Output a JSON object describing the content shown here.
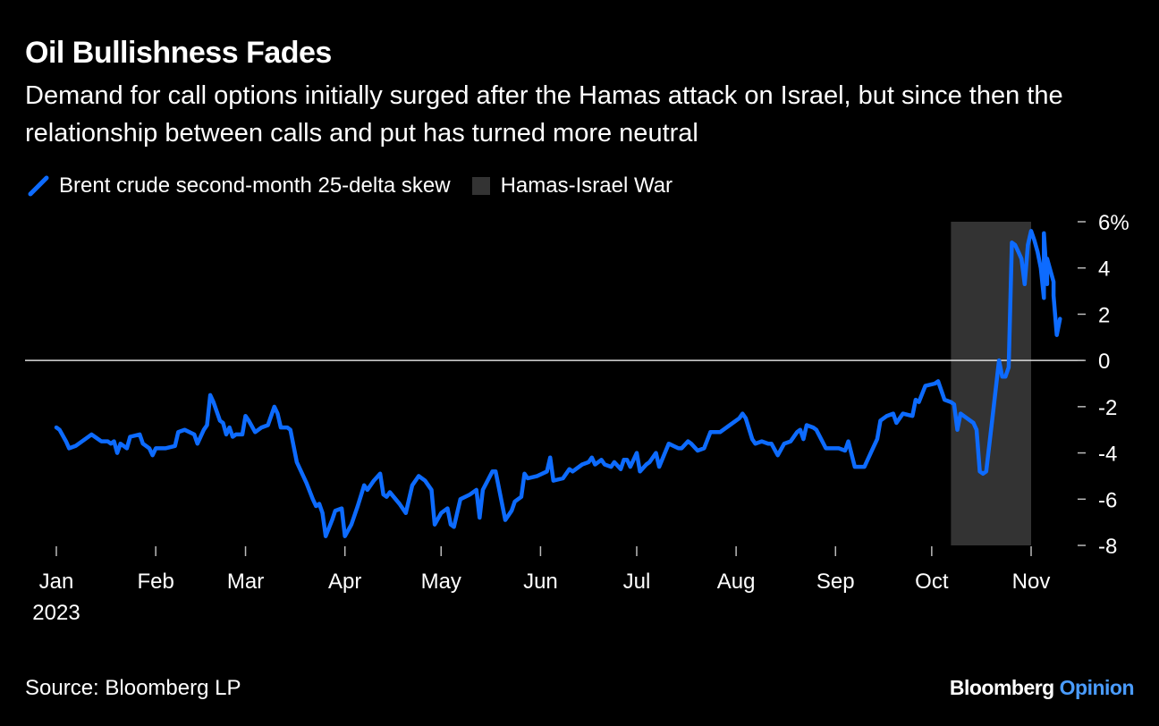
{
  "title": "Oil Bullishness Fades",
  "subtitle": "Demand for call options initially surged after the Hamas attack on Israel, but since then the relationship between calls and put has turned more neutral",
  "source": "Source: Bloomberg LP",
  "brand": {
    "name": "Bloomberg",
    "section": "Opinion"
  },
  "colors": {
    "line": "#0d6bff",
    "shade": "#333333",
    "zero_line": "#dddddd",
    "background": "#000000"
  },
  "legend": [
    {
      "label": "Brent crude second-month 25-delta skew",
      "icon": "line-swatch-icon"
    },
    {
      "label": "Hamas-Israel War",
      "icon": "box-swatch-icon"
    }
  ],
  "chart_data": {
    "type": "line",
    "title": "Oil Bullishness Fades",
    "ylim": [
      -8,
      6
    ],
    "yticks": [
      -8,
      -6,
      -4,
      -2,
      0,
      2,
      4,
      6
    ],
    "ytick_labels": [
      "-8",
      "-6",
      "-4",
      "-2",
      "0",
      "2",
      "4",
      "6%"
    ],
    "x_axis_start": "2023-01-01",
    "x_axis_end": "2023-11-01",
    "xtick_labels": [
      "Jan",
      "Feb",
      "Mar",
      "Apr",
      "May",
      "Jun",
      "Jul",
      "Aug",
      "Sep",
      "Oct",
      "Nov"
    ],
    "xtick_dates": [
      "2023-01-01",
      "2023-02-01",
      "2023-03-01",
      "2023-04-01",
      "2023-05-01",
      "2023-06-01",
      "2023-07-01",
      "2023-08-01",
      "2023-09-01",
      "2023-10-01",
      "2023-11-01"
    ],
    "year_label": "2023",
    "shaded_region": {
      "label": "Hamas-Israel War",
      "start": "2023-10-07",
      "end": "2023-11-01"
    },
    "series": [
      {
        "name": "Brent crude second-month 25-delta skew",
        "points": [
          [
            "2023-01-01",
            -2.9
          ],
          [
            "2023-01-02",
            -3.0
          ],
          [
            "2023-01-04",
            -3.5
          ],
          [
            "2023-01-05",
            -3.8
          ],
          [
            "2023-01-07",
            -3.7
          ],
          [
            "2023-01-10",
            -3.4
          ],
          [
            "2023-01-12",
            -3.2
          ],
          [
            "2023-01-13",
            -3.3
          ],
          [
            "2023-01-15",
            -3.5
          ],
          [
            "2023-01-17",
            -3.5
          ],
          [
            "2023-01-18",
            -3.6
          ],
          [
            "2023-01-19",
            -3.5
          ],
          [
            "2023-01-20",
            -4.0
          ],
          [
            "2023-01-21",
            -3.6
          ],
          [
            "2023-01-23",
            -3.8
          ],
          [
            "2023-01-24",
            -3.3
          ],
          [
            "2023-01-27",
            -3.2
          ],
          [
            "2023-01-28",
            -3.6
          ],
          [
            "2023-01-30",
            -3.8
          ],
          [
            "2023-01-31",
            -4.1
          ],
          [
            "2023-02-01",
            -3.8
          ],
          [
            "2023-02-04",
            -3.8
          ],
          [
            "2023-02-07",
            -3.7
          ],
          [
            "2023-02-08",
            -3.1
          ],
          [
            "2023-02-10",
            -3.0
          ],
          [
            "2023-02-13",
            -3.2
          ],
          [
            "2023-02-14",
            -3.6
          ],
          [
            "2023-02-16",
            -3.0
          ],
          [
            "2023-02-17",
            -2.8
          ],
          [
            "2023-02-18",
            -1.5
          ],
          [
            "2023-02-19",
            -1.8
          ],
          [
            "2023-02-21",
            -2.6
          ],
          [
            "2023-02-22",
            -2.7
          ],
          [
            "2023-02-23",
            -3.2
          ],
          [
            "2023-02-24",
            -2.9
          ],
          [
            "2023-02-25",
            -3.3
          ],
          [
            "2023-02-26",
            -3.2
          ],
          [
            "2023-02-28",
            -3.2
          ],
          [
            "2023-03-01",
            -2.4
          ],
          [
            "2023-03-02",
            -2.6
          ],
          [
            "2023-03-04",
            -3.1
          ],
          [
            "2023-03-06",
            -2.9
          ],
          [
            "2023-03-08",
            -2.8
          ],
          [
            "2023-03-10",
            -2.0
          ],
          [
            "2023-03-11",
            -2.3
          ],
          [
            "2023-03-12",
            -2.9
          ],
          [
            "2023-03-14",
            -2.9
          ],
          [
            "2023-03-15",
            -3.0
          ],
          [
            "2023-03-17",
            -4.4
          ],
          [
            "2023-03-19",
            -5.0
          ],
          [
            "2023-03-20",
            -5.3
          ],
          [
            "2023-03-22",
            -6.0
          ],
          [
            "2023-03-23",
            -6.3
          ],
          [
            "2023-03-24",
            -6.2
          ],
          [
            "2023-03-25",
            -6.6
          ],
          [
            "2023-03-26",
            -7.6
          ],
          [
            "2023-03-28",
            -6.9
          ],
          [
            "2023-03-29",
            -6.5
          ],
          [
            "2023-03-31",
            -6.4
          ],
          [
            "2023-04-01",
            -7.6
          ],
          [
            "2023-04-03",
            -7.1
          ],
          [
            "2023-04-05",
            -6.3
          ],
          [
            "2023-04-07",
            -5.4
          ],
          [
            "2023-04-08",
            -5.6
          ],
          [
            "2023-04-10",
            -5.2
          ],
          [
            "2023-04-12",
            -4.9
          ],
          [
            "2023-04-13",
            -5.8
          ],
          [
            "2023-04-14",
            -5.9
          ],
          [
            "2023-04-15",
            -5.7
          ],
          [
            "2023-04-18",
            -6.2
          ],
          [
            "2023-04-20",
            -6.6
          ],
          [
            "2023-04-22",
            -5.4
          ],
          [
            "2023-04-24",
            -5.0
          ],
          [
            "2023-04-26",
            -5.2
          ],
          [
            "2023-04-28",
            -5.6
          ],
          [
            "2023-04-29",
            -7.1
          ],
          [
            "2023-05-01",
            -6.6
          ],
          [
            "2023-05-03",
            -6.4
          ],
          [
            "2023-05-04",
            -7.1
          ],
          [
            "2023-05-05",
            -7.2
          ],
          [
            "2023-05-07",
            -6.0
          ],
          [
            "2023-05-10",
            -5.8
          ],
          [
            "2023-05-12",
            -5.6
          ],
          [
            "2023-05-13",
            -6.8
          ],
          [
            "2023-05-14",
            -5.6
          ],
          [
            "2023-05-17",
            -4.8
          ],
          [
            "2023-05-18",
            -4.8
          ],
          [
            "2023-05-21",
            -6.9
          ],
          [
            "2023-05-23",
            -6.5
          ],
          [
            "2023-05-24",
            -6.1
          ],
          [
            "2023-05-26",
            -5.9
          ],
          [
            "2023-05-27",
            -4.9
          ],
          [
            "2023-05-28",
            -5.1
          ],
          [
            "2023-05-31",
            -5.0
          ],
          [
            "2023-06-03",
            -4.8
          ],
          [
            "2023-06-04",
            -4.2
          ],
          [
            "2023-06-05",
            -5.2
          ],
          [
            "2023-06-08",
            -5.1
          ],
          [
            "2023-06-10",
            -4.7
          ],
          [
            "2023-06-11",
            -4.8
          ],
          [
            "2023-06-14",
            -4.5
          ],
          [
            "2023-06-16",
            -4.4
          ],
          [
            "2023-06-17",
            -4.2
          ],
          [
            "2023-06-18",
            -4.5
          ],
          [
            "2023-06-20",
            -4.3
          ],
          [
            "2023-06-21",
            -4.5
          ],
          [
            "2023-06-23",
            -4.6
          ],
          [
            "2023-06-24",
            -4.4
          ],
          [
            "2023-06-26",
            -4.7
          ],
          [
            "2023-06-27",
            -4.3
          ],
          [
            "2023-06-28",
            -4.3
          ],
          [
            "2023-06-29",
            -4.6
          ],
          [
            "2023-07-01",
            -4.0
          ],
          [
            "2023-07-02",
            -4.8
          ],
          [
            "2023-07-04",
            -4.5
          ],
          [
            "2023-07-05",
            -4.4
          ],
          [
            "2023-07-07",
            -4.0
          ],
          [
            "2023-07-08",
            -4.6
          ],
          [
            "2023-07-11",
            -3.6
          ],
          [
            "2023-07-14",
            -3.8
          ],
          [
            "2023-07-15",
            -3.8
          ],
          [
            "2023-07-17",
            -3.5
          ],
          [
            "2023-07-18",
            -3.6
          ],
          [
            "2023-07-20",
            -3.9
          ],
          [
            "2023-07-22",
            -3.8
          ],
          [
            "2023-07-24",
            -3.1
          ],
          [
            "2023-07-27",
            -3.1
          ],
          [
            "2023-07-30",
            -2.8
          ],
          [
            "2023-08-02",
            -2.5
          ],
          [
            "2023-08-03",
            -2.3
          ],
          [
            "2023-08-04",
            -2.5
          ],
          [
            "2023-08-06",
            -3.4
          ],
          [
            "2023-08-07",
            -3.6
          ],
          [
            "2023-08-09",
            -3.5
          ],
          [
            "2023-08-11",
            -3.6
          ],
          [
            "2023-08-12",
            -3.6
          ],
          [
            "2023-08-14",
            -4.1
          ],
          [
            "2023-08-16",
            -3.6
          ],
          [
            "2023-08-18",
            -3.5
          ],
          [
            "2023-08-20",
            -3.1
          ],
          [
            "2023-08-21",
            -3.0
          ],
          [
            "2023-08-22",
            -3.4
          ],
          [
            "2023-08-23",
            -2.8
          ],
          [
            "2023-08-25",
            -2.9
          ],
          [
            "2023-08-26",
            -3.0
          ],
          [
            "2023-08-29",
            -3.8
          ],
          [
            "2023-08-31",
            -3.8
          ],
          [
            "2023-09-02",
            -3.8
          ],
          [
            "2023-09-04",
            -3.9
          ],
          [
            "2023-09-05",
            -3.5
          ],
          [
            "2023-09-07",
            -4.6
          ],
          [
            "2023-09-10",
            -4.6
          ],
          [
            "2023-09-12",
            -4.0
          ],
          [
            "2023-09-14",
            -3.4
          ],
          [
            "2023-09-15",
            -2.6
          ],
          [
            "2023-09-17",
            -2.4
          ],
          [
            "2023-09-19",
            -2.3
          ],
          [
            "2023-09-20",
            -2.7
          ],
          [
            "2023-09-22",
            -2.3
          ],
          [
            "2023-09-25",
            -2.4
          ],
          [
            "2023-09-26",
            -1.7
          ],
          [
            "2023-09-27",
            -1.8
          ],
          [
            "2023-09-29",
            -1.1
          ],
          [
            "2023-10-02",
            -1.0
          ],
          [
            "2023-10-03",
            -0.9
          ],
          [
            "2023-10-05",
            -1.7
          ],
          [
            "2023-10-07",
            -1.8
          ],
          [
            "2023-10-08",
            -1.9
          ],
          [
            "2023-10-09",
            -3.0
          ],
          [
            "2023-10-10",
            -2.3
          ],
          [
            "2023-10-12",
            -2.5
          ],
          [
            "2023-10-14",
            -2.7
          ],
          [
            "2023-10-15",
            -3.0
          ],
          [
            "2023-10-16",
            -4.8
          ],
          [
            "2023-10-17",
            -4.9
          ],
          [
            "2023-10-18",
            -4.8
          ],
          [
            "2023-10-20",
            -2.4
          ],
          [
            "2023-10-22",
            0.0
          ],
          [
            "2023-10-23",
            -0.7
          ],
          [
            "2023-10-24",
            -0.7
          ],
          [
            "2023-10-25",
            -0.3
          ],
          [
            "2023-10-26",
            5.1
          ],
          [
            "2023-10-27",
            5.0
          ],
          [
            "2023-10-28",
            4.7
          ],
          [
            "2023-10-29",
            4.4
          ],
          [
            "2023-10-30",
            3.3
          ],
          [
            "2023-10-31",
            5.0
          ],
          [
            "2023-11-01",
            5.6
          ],
          [
            "2023-11-02",
            5.2
          ],
          [
            "2023-11-03",
            4.7
          ],
          [
            "2023-11-04",
            4.0
          ],
          [
            "2023-11-05",
            2.7
          ],
          [
            "2023-11-05",
            5.5
          ],
          [
            "2023-11-06",
            3.3
          ],
          [
            "2023-11-06",
            4.4
          ],
          [
            "2023-11-08",
            3.4
          ],
          [
            "2023-11-08",
            2.8
          ],
          [
            "2023-11-09",
            1.1
          ],
          [
            "2023-11-10",
            1.8
          ]
        ]
      }
    ]
  }
}
